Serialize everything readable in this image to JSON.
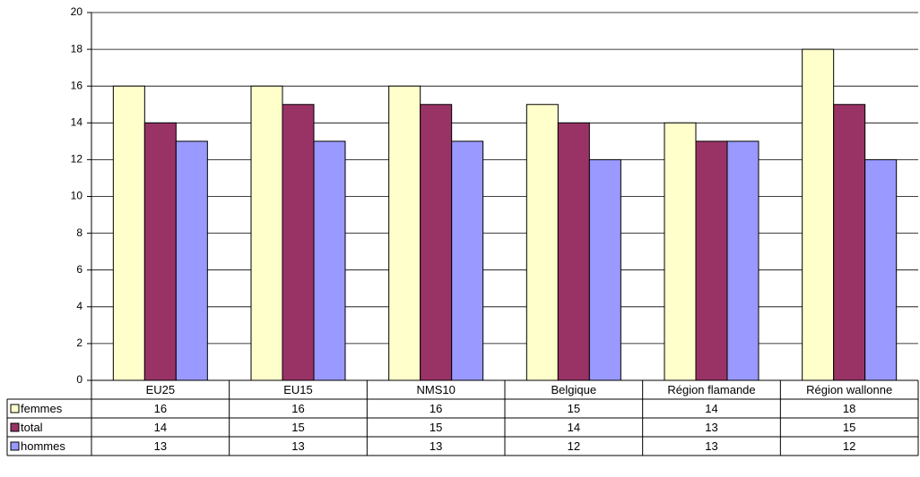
{
  "chart_data": {
    "type": "bar",
    "categories": [
      "EU25",
      "EU15",
      "NMS10",
      "Belgique",
      "Région flamande",
      "Région wallonne"
    ],
    "series": [
      {
        "name": "femmes",
        "color": "#ffffcc",
        "values": [
          16,
          16,
          16,
          15,
          14,
          18
        ]
      },
      {
        "name": "total",
        "color": "#993366",
        "values": [
          14,
          15,
          15,
          14,
          13,
          15
        ]
      },
      {
        "name": "hommes",
        "color": "#9999ff",
        "values": [
          13,
          13,
          13,
          12,
          13,
          12
        ]
      }
    ],
    "ylim": [
      0,
      20
    ],
    "yticks": [
      0,
      2,
      4,
      6,
      8,
      10,
      12,
      14,
      16,
      18,
      20
    ],
    "grid": true
  }
}
